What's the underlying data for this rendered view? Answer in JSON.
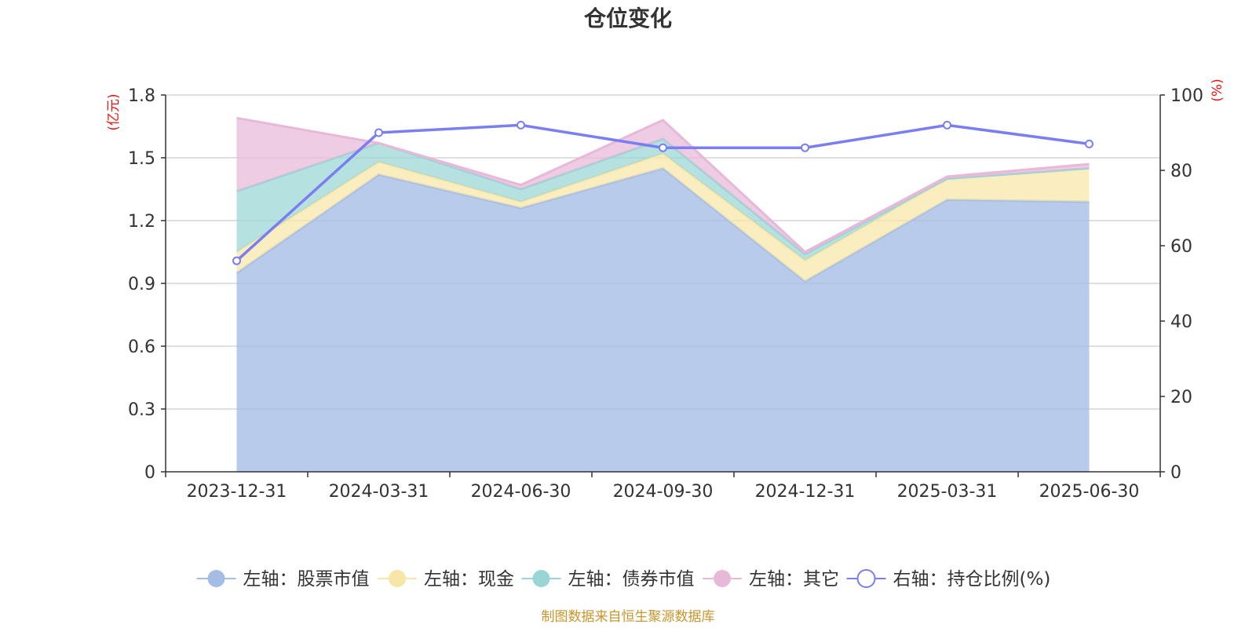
{
  "chart_data": {
    "type": "area",
    "title": "仓位变化",
    "categories": [
      "2023-12-31",
      "2024-03-31",
      "2024-06-30",
      "2024-09-30",
      "2024-12-31",
      "2025-03-31",
      "2025-06-30"
    ],
    "left_axis": {
      "unit": "(亿元)",
      "ylim": [
        0,
        1.8
      ],
      "ticks": [
        "0",
        "0.3",
        "0.6",
        "0.9",
        "1.2",
        "1.5",
        "1.8"
      ]
    },
    "right_axis": {
      "unit": "(%)",
      "ylim": [
        0,
        100
      ],
      "ticks": [
        "0",
        "20",
        "40",
        "60",
        "80",
        "100"
      ]
    },
    "stacked": true,
    "grid": true,
    "legend_position": "bottom",
    "series": [
      {
        "name": "左轴：股票市值",
        "axis": "left",
        "type": "area",
        "color": "#a4bde4",
        "values": [
          0.95,
          1.42,
          1.26,
          1.45,
          0.91,
          1.3,
          1.29
        ]
      },
      {
        "name": "左轴：现金",
        "axis": "left",
        "type": "area",
        "color": "#f8e6a8",
        "values": [
          0.1,
          0.06,
          0.03,
          0.07,
          0.1,
          0.1,
          0.16
        ]
      },
      {
        "name": "左轴：债券市值",
        "axis": "left",
        "type": "area",
        "color": "#9ad5d6",
        "values": [
          0.29,
          0.09,
          0.06,
          0.07,
          0.03,
          0.0,
          0.0
        ]
      },
      {
        "name": "左轴：其它",
        "axis": "left",
        "type": "area",
        "color": "#e8b8d8",
        "values": [
          0.35,
          0.0,
          0.02,
          0.09,
          0.01,
          0.01,
          0.02
        ]
      },
      {
        "name": "右轴：持仓比例(%)",
        "axis": "right",
        "type": "line",
        "color": "#7a7ef0",
        "values": [
          56,
          90,
          92,
          86,
          86,
          92,
          87
        ]
      }
    ],
    "source_note": "制图数据来自恒生聚源数据库"
  }
}
